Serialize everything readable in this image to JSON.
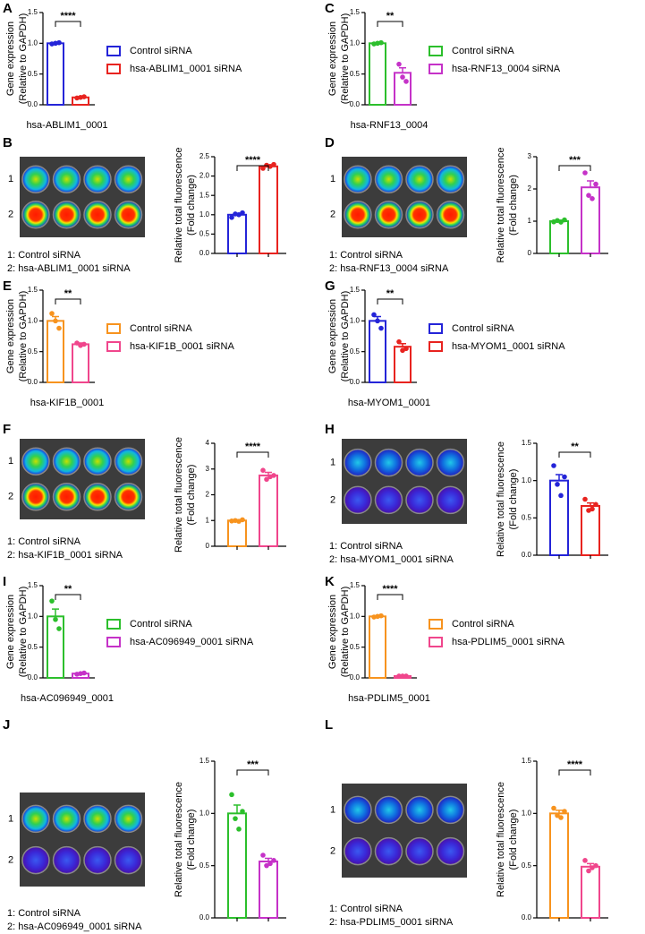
{
  "chart_data": [
    {
      "type": "bar",
      "panel": "A",
      "ylabel": [
        "Gene expression",
        "(Relative to GAPDH)"
      ],
      "xlabel": "hsa-ABLIM1_0001",
      "significance": "****",
      "ylim": [
        0,
        1.5
      ],
      "yticks": [
        {
          "value": 0,
          "label": "0.0"
        },
        {
          "value": 0.5,
          "label": "0.5"
        },
        {
          "value": 1,
          "label": "1.0"
        },
        {
          "value": 1.5,
          "label": "1.5"
        }
      ],
      "series": [
        {
          "name": "Control siRNA",
          "color": "#2424d8",
          "values": [
            1.0
          ],
          "errors": [
            0.01
          ],
          "points": [
            0.99,
            1.0,
            1.01
          ]
        },
        {
          "name": "hsa-ABLIM1_0001 siRNA",
          "color": "#e8231f",
          "values": [
            0.12
          ],
          "errors": [
            0.01
          ],
          "points": [
            0.11,
            0.12,
            0.13
          ]
        }
      ]
    },
    {
      "type": "bar",
      "panel": "B",
      "row_labels": [
        "1",
        "2"
      ],
      "captions": [
        "1: Control siRNA",
        "2: hsa-ABLIM1_0001 siRNA"
      ],
      "ylabel": [
        "Relative total fluorescence",
        "(Fold change)"
      ],
      "significance": "****",
      "ylim": [
        0,
        2.5
      ],
      "yticks": [
        {
          "value": 0,
          "label": "0.0"
        },
        {
          "value": 0.5,
          "label": "0.5"
        },
        {
          "value": 1,
          "label": "1.0"
        },
        {
          "value": 1.5,
          "label": "1.5"
        },
        {
          "value": 2,
          "label": "2.0"
        },
        {
          "value": 2.5,
          "label": "2.5"
        }
      ],
      "series": [
        {
          "color": "#2424d8",
          "values": [
            1.0
          ],
          "errors": [
            0.04
          ],
          "points": [
            0.93,
            1.02,
            1.0,
            1.05
          ]
        },
        {
          "color": "#e8231f",
          "values": [
            2.25
          ],
          "errors": [
            0.04
          ],
          "points": [
            2.2,
            2.28,
            2.25,
            2.3
          ]
        }
      ]
    },
    {
      "type": "bar",
      "panel": "C",
      "ylabel": [
        "Gene expression",
        "(Relative to GAPDH)"
      ],
      "xlabel": "hsa-RNF13_0004",
      "significance": "**",
      "ylim": [
        0,
        1.5
      ],
      "yticks": [
        {
          "value": 0,
          "label": "0.0"
        },
        {
          "value": 0.5,
          "label": "0.5"
        },
        {
          "value": 1,
          "label": "1.0"
        },
        {
          "value": 1.5,
          "label": "1.5"
        }
      ],
      "series": [
        {
          "name": "Control siRNA",
          "color": "#2cbf2c",
          "values": [
            1.0
          ],
          "errors": [
            0.01
          ],
          "points": [
            0.99,
            1.0,
            1.01
          ]
        },
        {
          "name": "hsa-RNF13_0004 siRNA",
          "color": "#c532c8",
          "values": [
            0.52
          ],
          "errors": [
            0.08
          ],
          "points": [
            0.66,
            0.45,
            0.38
          ]
        }
      ]
    },
    {
      "type": "bar",
      "panel": "D",
      "row_labels": [
        "1",
        "2"
      ],
      "captions": [
        "1: Control siRNA",
        "2: hsa-RNF13_0004 siRNA"
      ],
      "ylabel": [
        "Relative total fluorescence",
        "(Fold change)"
      ],
      "significance": "***",
      "ylim": [
        0,
        3
      ],
      "yticks": [
        0,
        1,
        2,
        3
      ],
      "series": [
        {
          "color": "#2cbf2c",
          "values": [
            1.0
          ],
          "errors": [
            0.03
          ],
          "points": [
            0.98,
            1.02,
            0.97,
            1.04
          ]
        },
        {
          "color": "#c532c8",
          "values": [
            2.05
          ],
          "errors": [
            0.2
          ],
          "points": [
            2.5,
            1.8,
            1.7,
            2.15
          ]
        }
      ]
    },
    {
      "type": "bar",
      "panel": "E",
      "ylabel": [
        "Gene expression",
        "(Relative to GAPDH)"
      ],
      "xlabel": "hsa-KIF1B_0001",
      "significance": "**",
      "ylim": [
        0,
        1.5
      ],
      "yticks": [
        {
          "value": 0,
          "label": "0.0"
        },
        {
          "value": 0.5,
          "label": "0.5"
        },
        {
          "value": 1,
          "label": "1.0"
        },
        {
          "value": 1.5,
          "label": "1.5"
        }
      ],
      "series": [
        {
          "name": "Control siRNA",
          "color": "#f7931e",
          "values": [
            1.0
          ],
          "errors": [
            0.07
          ],
          "points": [
            1.12,
            1.0,
            0.88
          ]
        },
        {
          "name": "hsa-KIF1B_0001 siRNA",
          "color": "#f0468c",
          "values": [
            0.62
          ],
          "errors": [
            0.02
          ],
          "points": [
            0.64,
            0.6,
            0.62
          ]
        }
      ]
    },
    {
      "type": "bar",
      "panel": "F",
      "row_labels": [
        "1",
        "2"
      ],
      "captions": [
        "1: Control siRNA",
        "2: hsa-KIF1B_0001 siRNA"
      ],
      "ylabel": [
        "Relative total fluorescence",
        "(Fold change)"
      ],
      "significance": "****",
      "ylim": [
        0,
        4
      ],
      "yticks": [
        0,
        1,
        2,
        3,
        4
      ],
      "series": [
        {
          "color": "#f7931e",
          "values": [
            1.0
          ],
          "errors": [
            0.03
          ],
          "points": [
            0.98,
            1.0,
            0.97,
            1.03
          ]
        },
        {
          "color": "#f0468c",
          "values": [
            2.75
          ],
          "errors": [
            0.12
          ],
          "points": [
            2.95,
            2.6,
            2.7,
            2.75
          ]
        }
      ]
    },
    {
      "type": "bar",
      "panel": "G",
      "ylabel": [
        "Gene expression",
        "(Relative to GAPDH)"
      ],
      "xlabel": "hsa-MYOM1_0001",
      "significance": "**",
      "ylim": [
        0,
        1.5
      ],
      "yticks": [
        {
          "value": 0,
          "label": "0.0"
        },
        {
          "value": 0.5,
          "label": "0.5"
        },
        {
          "value": 1,
          "label": "1.0"
        },
        {
          "value": 1.5,
          "label": "1.5"
        }
      ],
      "series": [
        {
          "name": "Control siRNA",
          "color": "#2424d8",
          "values": [
            1.0
          ],
          "errors": [
            0.07
          ],
          "points": [
            1.1,
            1.0,
            0.88
          ]
        },
        {
          "name": "hsa-MYOM1_0001 siRNA",
          "color": "#e8231f",
          "values": [
            0.58
          ],
          "errors": [
            0.05
          ],
          "points": [
            0.66,
            0.52,
            0.55
          ]
        }
      ]
    },
    {
      "type": "bar",
      "panel": "H",
      "row_labels": [
        "1",
        "2"
      ],
      "captions": [
        "1: Control siRNA",
        "2: hsa-MYOM1_0001 siRNA"
      ],
      "ylabel": [
        "Relative total fluorescence",
        "(Fold change)"
      ],
      "significance": "**",
      "ylim": [
        0,
        1.5
      ],
      "yticks": [
        {
          "value": 0,
          "label": "0.0"
        },
        {
          "value": 0.5,
          "label": "0.5"
        },
        {
          "value": 1,
          "label": "1.0"
        },
        {
          "value": 1.5,
          "label": "1.5"
        }
      ],
      "series": [
        {
          "color": "#2424d8",
          "values": [
            1.0
          ],
          "errors": [
            0.08
          ],
          "points": [
            1.2,
            0.95,
            0.8,
            1.05
          ]
        },
        {
          "color": "#e8231f",
          "values": [
            0.66
          ],
          "errors": [
            0.04
          ],
          "points": [
            0.75,
            0.6,
            0.62,
            0.68
          ]
        }
      ]
    },
    {
      "type": "bar",
      "panel": "I",
      "ylabel": [
        "Gene expression",
        "(Relative to GAPDH)"
      ],
      "xlabel": "hsa-AC096949_0001",
      "significance": "**",
      "ylim": [
        0,
        1.5
      ],
      "yticks": [
        {
          "value": 0,
          "label": "0.0"
        },
        {
          "value": 0.5,
          "label": "0.5"
        },
        {
          "value": 1,
          "label": "1.0"
        },
        {
          "value": 1.5,
          "label": "1.5"
        }
      ],
      "series": [
        {
          "name": "Control siRNA",
          "color": "#2cbf2c",
          "values": [
            1.0
          ],
          "errors": [
            0.12
          ],
          "points": [
            1.25,
            0.95,
            0.8
          ]
        },
        {
          "name": "hsa-AC096949_0001 siRNA",
          "color": "#c532c8",
          "values": [
            0.07
          ],
          "errors": [
            0.01
          ],
          "points": [
            0.06,
            0.07,
            0.08
          ]
        }
      ]
    },
    {
      "type": "bar",
      "panel": "J",
      "row_labels": [
        "1",
        "2"
      ],
      "captions": [
        "1: Control siRNA",
        "2: hsa-AC096949_0001 siRNA"
      ],
      "ylabel": [
        "Relative total fluorescence",
        "(Fold change)"
      ],
      "significance": "***",
      "ylim": [
        0,
        1.5
      ],
      "yticks": [
        {
          "value": 0,
          "label": "0.0"
        },
        {
          "value": 0.5,
          "label": "0.5"
        },
        {
          "value": 1,
          "label": "1.0"
        },
        {
          "value": 1.5,
          "label": "1.5"
        }
      ],
      "series": [
        {
          "color": "#2cbf2c",
          "values": [
            1.0
          ],
          "errors": [
            0.08
          ],
          "points": [
            1.18,
            0.95,
            0.85,
            1.02
          ]
        },
        {
          "color": "#c532c8",
          "values": [
            0.54
          ],
          "errors": [
            0.03
          ],
          "points": [
            0.6,
            0.5,
            0.52,
            0.55
          ]
        }
      ]
    },
    {
      "type": "bar",
      "panel": "K",
      "ylabel": [
        "Gene expression",
        "(Relative to GAPDH)"
      ],
      "xlabel": "hsa-PDLIM5_0001",
      "significance": "****",
      "ylim": [
        0,
        1.5
      ],
      "yticks": [
        {
          "value": 0,
          "label": "0.0"
        },
        {
          "value": 0.5,
          "label": "0.5"
        },
        {
          "value": 1,
          "label": "1.0"
        },
        {
          "value": 1.5,
          "label": "1.5"
        }
      ],
      "series": [
        {
          "name": "Control siRNA",
          "color": "#f7931e",
          "values": [
            1.0
          ],
          "errors": [
            0.01
          ],
          "points": [
            0.99,
            1.0,
            1.01
          ]
        },
        {
          "name": "hsa-PDLIM5_0001 siRNA",
          "color": "#f0468c",
          "values": [
            0.03
          ],
          "errors": [
            0.005
          ],
          "points": [
            0.03,
            0.03,
            0.03
          ]
        }
      ]
    },
    {
      "type": "bar",
      "panel": "L",
      "row_labels": [
        "1",
        "2"
      ],
      "captions": [
        "1: Control siRNA",
        "2: hsa-PDLIM5_0001 siRNA"
      ],
      "ylabel": [
        "Relative total fluorescence",
        "(Fold change)"
      ],
      "significance": "****",
      "ylim": [
        0,
        1.5
      ],
      "yticks": [
        {
          "value": 0,
          "label": "0.0"
        },
        {
          "value": 0.5,
          "label": "0.5"
        },
        {
          "value": 1,
          "label": "1.0"
        },
        {
          "value": 1.5,
          "label": "1.5"
        }
      ],
      "series": [
        {
          "color": "#f7931e",
          "values": [
            1.0
          ],
          "errors": [
            0.03
          ],
          "points": [
            1.05,
            0.98,
            0.96,
            1.02
          ]
        },
        {
          "color": "#f0468c",
          "values": [
            0.49
          ],
          "errors": [
            0.03
          ],
          "points": [
            0.55,
            0.45,
            0.48,
            0.5
          ]
        }
      ]
    }
  ]
}
